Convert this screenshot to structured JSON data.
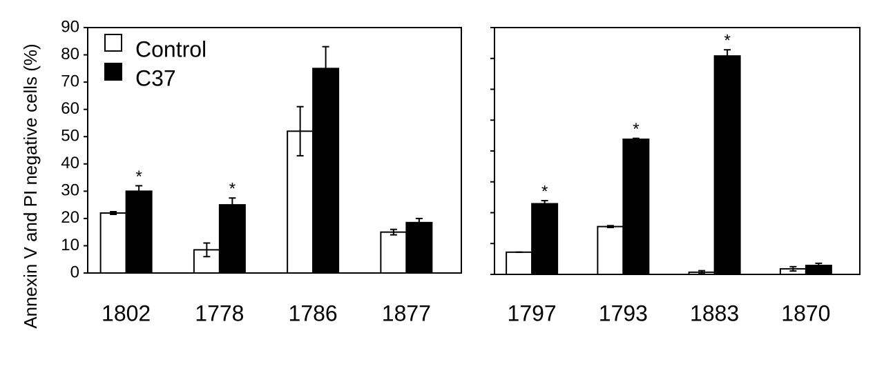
{
  "chart_data": [
    {
      "type": "bar",
      "ylabel": "Annexin V and PI negative cells (%)",
      "categories": [
        "1802",
        "1778",
        "1786",
        "1877"
      ],
      "series": [
        {
          "name": "Control",
          "color": "#ffffff",
          "values": [
            22,
            8.5,
            52,
            15
          ],
          "errors": [
            0.5,
            2.5,
            9,
            1
          ],
          "annotations": [
            null,
            null,
            null,
            null
          ]
        },
        {
          "name": "C37",
          "color": "#000000",
          "values": [
            30,
            25,
            75,
            18.5
          ],
          "errors": [
            2,
            2.5,
            8,
            1.5
          ],
          "annotations": [
            "*",
            "*",
            null,
            null
          ]
        }
      ],
      "ylim": [
        0,
        90
      ],
      "yticks": [
        0,
        10,
        20,
        30,
        40,
        50,
        60,
        70,
        80,
        90
      ],
      "tick_labels": true,
      "legend": "upper left"
    },
    {
      "type": "bar",
      "categories": [
        "1797",
        "1793",
        "1883",
        "1870"
      ],
      "series": [
        {
          "color": "#ffffff",
          "values": [
            7.2,
            15.5,
            0.7,
            1.8
          ],
          "errors": [
            0,
            0.3,
            0.5,
            0.7
          ],
          "annotations": [
            null,
            null,
            null,
            null
          ]
        },
        {
          "color": "#000000",
          "values": [
            22.9,
            43.8,
            70.8,
            2.9
          ],
          "errors": [
            1,
            0.3,
            2,
            0.7
          ],
          "annotations": [
            "*",
            "*",
            "*",
            null
          ]
        }
      ],
      "ylim": [
        0,
        80
      ],
      "yticks": [
        0,
        10,
        20,
        30,
        40,
        50,
        60,
        70,
        80
      ],
      "tick_labels": false
    }
  ]
}
